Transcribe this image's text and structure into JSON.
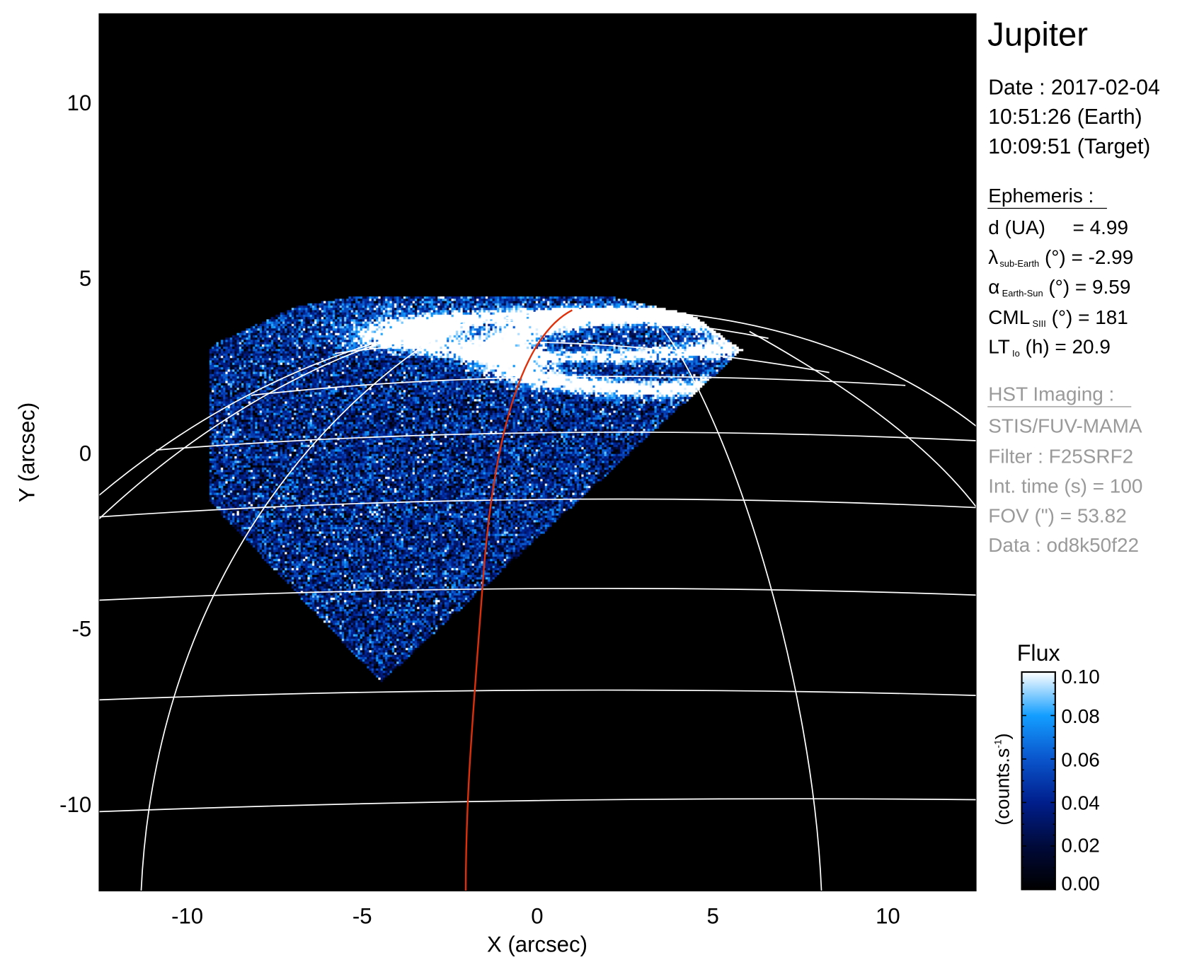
{
  "title": "Jupiter",
  "observation": {
    "date": "Date : 2017-02-04",
    "earth_time": "10:51:26 (Earth)",
    "target_time": "10:09:51 (Target)"
  },
  "ephemeris": {
    "heading": "Ephemeris :",
    "rows": [
      {
        "symbol": "d (UA)",
        "sub": "",
        "rest": "= 4.99"
      },
      {
        "symbol": "λ",
        "sub": "sub-Earth",
        "rest": " (°) = -2.99"
      },
      {
        "symbol": "α",
        "sub": "Earth-Sun",
        "rest": " (°) = 9.59"
      },
      {
        "symbol": "CML",
        "sub": "SIII",
        "rest": " (°) = 181"
      },
      {
        "symbol": "LT",
        "sub": "Io",
        "rest": " (h) = 20.9"
      }
    ]
  },
  "hst": {
    "heading": "HST Imaging :",
    "lines": [
      "STIS/FUV-MAMA",
      "Filter : F25SRF2",
      "Int. time (s) = 100",
      "FOV (\") = 53.82",
      "Data : od8k50f22"
    ],
    "color": "#9a9a9a"
  },
  "colorbar": {
    "title": "Flux",
    "unit": "(counts.s",
    "unit_sup": "-1",
    "unit_close": ")",
    "range": [
      0.0,
      0.1
    ],
    "ticks": [
      "0.00",
      "0.02",
      "0.04",
      "0.06",
      "0.08",
      "0.10"
    ],
    "colors": [
      "#000000",
      "#000a3a",
      "#001e8c",
      "#0a55cc",
      "#139eff",
      "#ffffff"
    ]
  },
  "chart_data": {
    "type": "heatmap",
    "description_of_marks": "",
    "xlabel": "X (arcsec)",
    "ylabel": "Y (arcsec)",
    "xlim": [
      -12.5,
      12.5
    ],
    "ylim": [
      -12.5,
      12.5
    ],
    "xticks": [
      "-10",
      "-5",
      "0",
      "5",
      "10"
    ],
    "yticks": [
      "10",
      "5",
      "0",
      "-5",
      "-10"
    ],
    "grid_color": "#ffffff",
    "meridian_highlight_color": "#e0300a",
    "background": "#000000"
  }
}
